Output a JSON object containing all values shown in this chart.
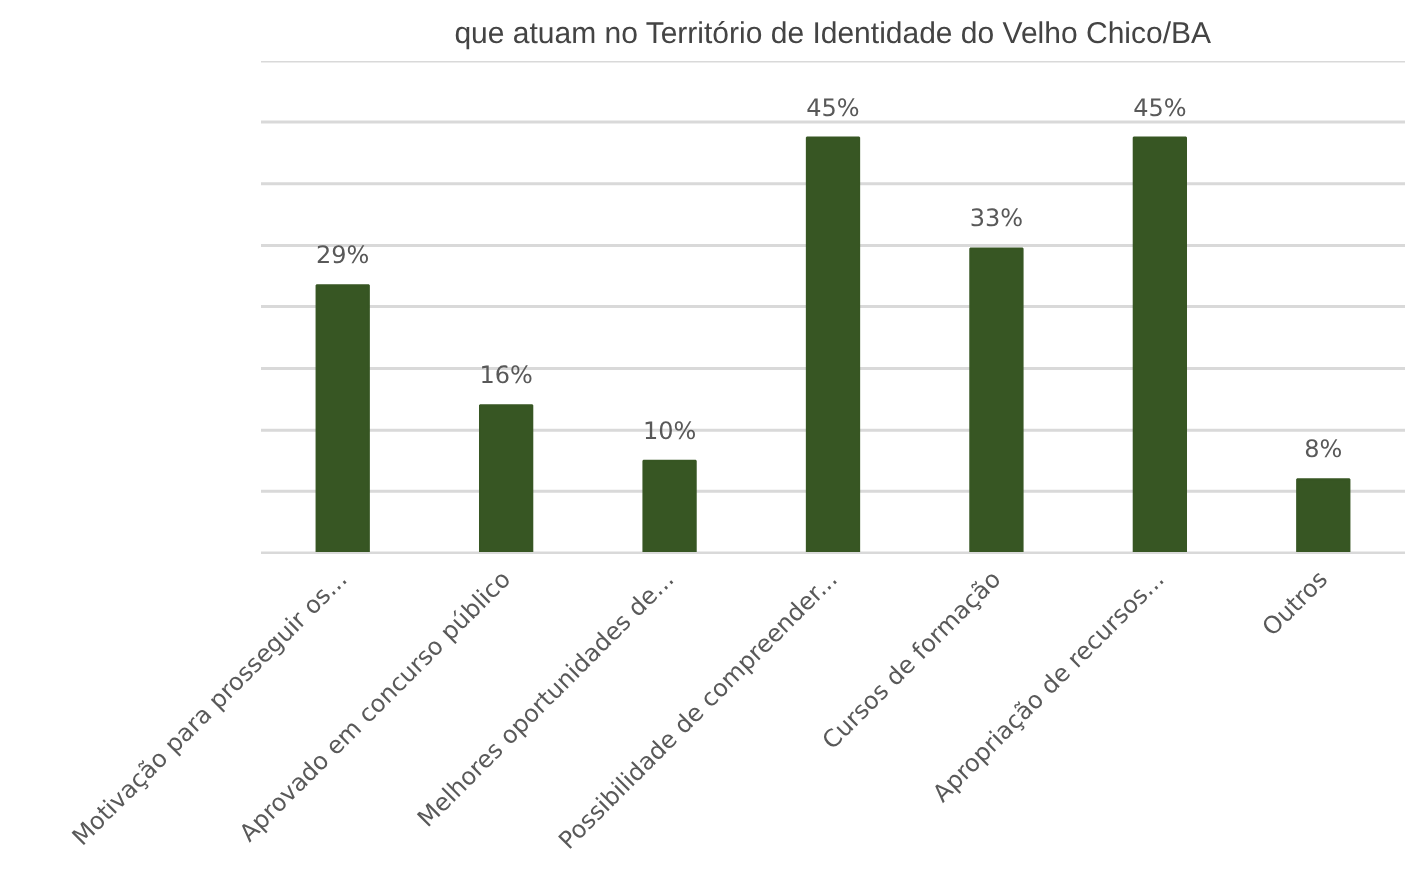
{
  "chart_data": {
    "type": "bar",
    "title": "que atuam no Território de Identidade do Velho Chico/BA",
    "categories": [
      "Motivação para prosseguir os...",
      "Aprovado em concurso público",
      "Melhores oportunidades de...",
      "Possibilidade de compreender...",
      "Cursos de formação",
      "Apropriação de recursos...",
      "Outros"
    ],
    "values": [
      29,
      16,
      10,
      45,
      33,
      45,
      8
    ],
    "color": "#375623",
    "value_labels": [
      "29%",
      "16%",
      "10%",
      "45%",
      "33%",
      "45%",
      "8%"
    ],
    "ylim": [
      0,
      53.3
    ],
    "yticks": [
      {
        "value": 0,
        "label": null
      },
      {
        "value": 6.7,
        "label": null
      },
      {
        "value": 13.3,
        "label": null
      },
      {
        "value": 20,
        "label": null
      },
      {
        "value": 26.7,
        "label": null
      },
      {
        "value": 33.3,
        "label": null
      },
      {
        "value": 40,
        "label": null
      },
      {
        "value": 46.7,
        "label": null
      },
      {
        "value": 53.3,
        "label": null
      }
    ],
    "grid": "y",
    "tick_labels": "x"
  }
}
